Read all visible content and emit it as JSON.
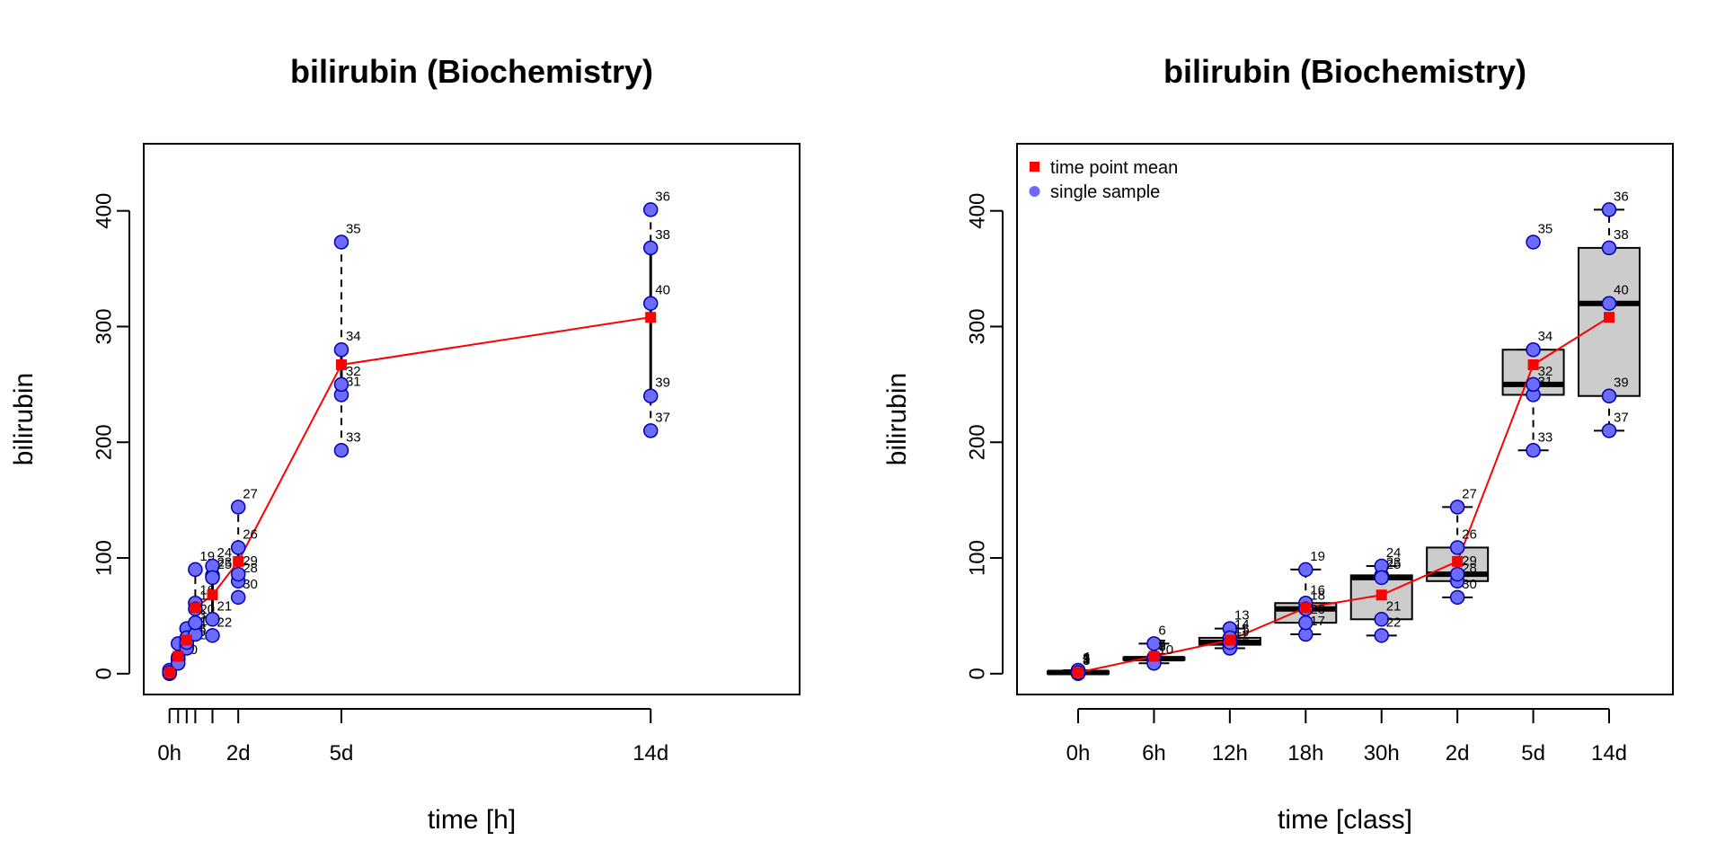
{
  "chart_data": [
    {
      "type": "scatter",
      "title": "bilirubin (Biochemistry)",
      "xlabel": "time [h]",
      "ylabel": "bilirubin",
      "ylim": [
        -18,
        458
      ],
      "yticks": [
        0,
        100,
        200,
        300,
        400
      ],
      "xlim": [
        -18,
        440
      ],
      "xticks_minor": [
        0,
        6,
        12,
        18,
        30,
        48
      ],
      "xticks": [
        {
          "x": 0,
          "label": "0h"
        },
        {
          "x": 48,
          "label": "2d"
        },
        {
          "x": 120,
          "label": "5d"
        },
        {
          "x": 336,
          "label": "14d"
        }
      ],
      "series": [
        {
          "name": "single sample",
          "points": [
            {
              "id": "1",
              "x": 0,
              "y": 1
            },
            {
              "id": "2",
              "x": 0,
              "y": 2
            },
            {
              "id": "3",
              "x": 0,
              "y": 0
            },
            {
              "id": "4",
              "x": 0,
              "y": 3
            },
            {
              "id": "5",
              "x": 0,
              "y": 1
            },
            {
              "id": "6",
              "x": 6,
              "y": 26
            },
            {
              "id": "7",
              "x": 6,
              "y": 14
            },
            {
              "id": "8",
              "x": 6,
              "y": 12
            },
            {
              "id": "9",
              "x": 6,
              "y": 13
            },
            {
              "id": "10",
              "x": 6,
              "y": 9
            },
            {
              "id": "11",
              "x": 12,
              "y": 25
            },
            {
              "id": "12",
              "x": 12,
              "y": 22
            },
            {
              "id": "13",
              "x": 12,
              "y": 39
            },
            {
              "id": "14",
              "x": 12,
              "y": 31
            },
            {
              "id": "15",
              "x": 12,
              "y": 27
            },
            {
              "id": "16",
              "x": 18,
              "y": 61
            },
            {
              "id": "17",
              "x": 18,
              "y": 34
            },
            {
              "id": "18",
              "x": 18,
              "y": 56
            },
            {
              "id": "19",
              "x": 18,
              "y": 90
            },
            {
              "id": "20",
              "x": 18,
              "y": 44
            },
            {
              "id": "21",
              "x": 30,
              "y": 47
            },
            {
              "id": "22",
              "x": 30,
              "y": 33
            },
            {
              "id": "23",
              "x": 30,
              "y": 85
            },
            {
              "id": "24",
              "x": 30,
              "y": 93
            },
            {
              "id": "25",
              "x": 30,
              "y": 83
            },
            {
              "id": "26",
              "x": 48,
              "y": 109
            },
            {
              "id": "27",
              "x": 48,
              "y": 144
            },
            {
              "id": "28",
              "x": 48,
              "y": 80
            },
            {
              "id": "29",
              "x": 48,
              "y": 86
            },
            {
              "id": "30",
              "x": 48,
              "y": 66
            },
            {
              "id": "31",
              "x": 120,
              "y": 241
            },
            {
              "id": "32",
              "x": 120,
              "y": 250
            },
            {
              "id": "33",
              "x": 120,
              "y": 193
            },
            {
              "id": "34",
              "x": 120,
              "y": 280
            },
            {
              "id": "35",
              "x": 120,
              "y": 373
            },
            {
              "id": "36",
              "x": 336,
              "y": 401
            },
            {
              "id": "37",
              "x": 336,
              "y": 210
            },
            {
              "id": "38",
              "x": 336,
              "y": 368
            },
            {
              "id": "39",
              "x": 336,
              "y": 240
            },
            {
              "id": "40",
              "x": 336,
              "y": 320
            }
          ]
        },
        {
          "name": "time point mean",
          "points": [
            {
              "x": 0,
              "y": 1
            },
            {
              "x": 6,
              "y": 15
            },
            {
              "x": 12,
              "y": 29
            },
            {
              "x": 18,
              "y": 57
            },
            {
              "x": 30,
              "y": 68
            },
            {
              "x": 48,
              "y": 97
            },
            {
              "x": 120,
              "y": 267
            },
            {
              "x": 336,
              "y": 308
            }
          ]
        }
      ]
    },
    {
      "type": "box",
      "title": "bilirubin (Biochemistry)",
      "xlabel": "time [class]",
      "ylabel": "bilirubin",
      "ylim": [
        -18,
        458
      ],
      "yticks": [
        0,
        100,
        200,
        300,
        400
      ],
      "categories": [
        "0h",
        "6h",
        "12h",
        "18h",
        "30h",
        "2d",
        "5d",
        "14d"
      ],
      "legend": {
        "position": "top-left",
        "entries": [
          "time point mean",
          "single sample"
        ]
      },
      "boxes": [
        {
          "cat": "0h",
          "min": 0,
          "q1": 0,
          "median": 1,
          "q3": 2,
          "max": 3
        },
        {
          "cat": "6h",
          "min": 9,
          "q1": 12,
          "median": 13,
          "q3": 14,
          "max": 26
        },
        {
          "cat": "12h",
          "min": 22,
          "q1": 25,
          "median": 27,
          "q3": 31,
          "max": 39
        },
        {
          "cat": "18h",
          "min": 34,
          "q1": 44,
          "median": 56,
          "q3": 61,
          "max": 90
        },
        {
          "cat": "30h",
          "min": 33,
          "q1": 47,
          "median": 83,
          "q3": 85,
          "max": 93
        },
        {
          "cat": "2d",
          "min": 66,
          "q1": 80,
          "median": 86,
          "q3": 109,
          "max": 144
        },
        {
          "cat": "5d",
          "min": 193,
          "q1": 241,
          "median": 250,
          "q3": 280,
          "max": 373
        },
        {
          "cat": "14d",
          "min": 210,
          "q1": 240,
          "median": 320,
          "q3": 368,
          "max": 401
        }
      ],
      "whisker_max_override": {
        "5d": 280
      },
      "outliers": {
        "5d": [
          373
        ]
      },
      "series": [
        {
          "name": "single sample",
          "points": [
            {
              "id": "1",
              "c": 0,
              "y": 1
            },
            {
              "id": "2",
              "c": 0,
              "y": 2
            },
            {
              "id": "3",
              "c": 0,
              "y": 0
            },
            {
              "id": "4",
              "c": 0,
              "y": 3
            },
            {
              "id": "5",
              "c": 0,
              "y": 1
            },
            {
              "id": "6",
              "c": 1,
              "y": 26
            },
            {
              "id": "7",
              "c": 1,
              "y": 14
            },
            {
              "id": "8",
              "c": 1,
              "y": 12
            },
            {
              "id": "9",
              "c": 1,
              "y": 13
            },
            {
              "id": "10",
              "c": 1,
              "y": 9
            },
            {
              "id": "11",
              "c": 2,
              "y": 25
            },
            {
              "id": "12",
              "c": 2,
              "y": 22
            },
            {
              "id": "13",
              "c": 2,
              "y": 39
            },
            {
              "id": "14",
              "c": 2,
              "y": 31
            },
            {
              "id": "15",
              "c": 2,
              "y": 27
            },
            {
              "id": "16",
              "c": 3,
              "y": 61
            },
            {
              "id": "17",
              "c": 3,
              "y": 34
            },
            {
              "id": "18",
              "c": 3,
              "y": 56
            },
            {
              "id": "19",
              "c": 3,
              "y": 90
            },
            {
              "id": "20",
              "c": 3,
              "y": 44
            },
            {
              "id": "21",
              "c": 4,
              "y": 47
            },
            {
              "id": "22",
              "c": 4,
              "y": 33
            },
            {
              "id": "23",
              "c": 4,
              "y": 85
            },
            {
              "id": "24",
              "c": 4,
              "y": 93
            },
            {
              "id": "25",
              "c": 4,
              "y": 83
            },
            {
              "id": "26",
              "c": 5,
              "y": 109
            },
            {
              "id": "27",
              "c": 5,
              "y": 144
            },
            {
              "id": "28",
              "c": 5,
              "y": 80
            },
            {
              "id": "29",
              "c": 5,
              "y": 86
            },
            {
              "id": "30",
              "c": 5,
              "y": 66
            },
            {
              "id": "31",
              "c": 6,
              "y": 241
            },
            {
              "id": "32",
              "c": 6,
              "y": 250
            },
            {
              "id": "33",
              "c": 6,
              "y": 193
            },
            {
              "id": "34",
              "c": 6,
              "y": 280
            },
            {
              "id": "35",
              "c": 6,
              "y": 373
            },
            {
              "id": "36",
              "c": 7,
              "y": 401
            },
            {
              "id": "37",
              "c": 7,
              "y": 210
            },
            {
              "id": "38",
              "c": 7,
              "y": 368
            },
            {
              "id": "39",
              "c": 7,
              "y": 240
            },
            {
              "id": "40",
              "c": 7,
              "y": 320
            }
          ]
        },
        {
          "name": "time point mean",
          "points": [
            {
              "c": 0,
              "y": 1
            },
            {
              "c": 1,
              "y": 15
            },
            {
              "c": 2,
              "y": 29
            },
            {
              "c": 3,
              "y": 57
            },
            {
              "c": 4,
              "y": 68
            },
            {
              "c": 5,
              "y": 97
            },
            {
              "c": 6,
              "y": 267
            },
            {
              "c": 7,
              "y": 308
            }
          ]
        }
      ]
    }
  ],
  "colors": {
    "point_fill": "#6b6bff",
    "point_stroke": "#0000aa",
    "mean": "#ff0000",
    "box_fill": "#cccccc"
  }
}
